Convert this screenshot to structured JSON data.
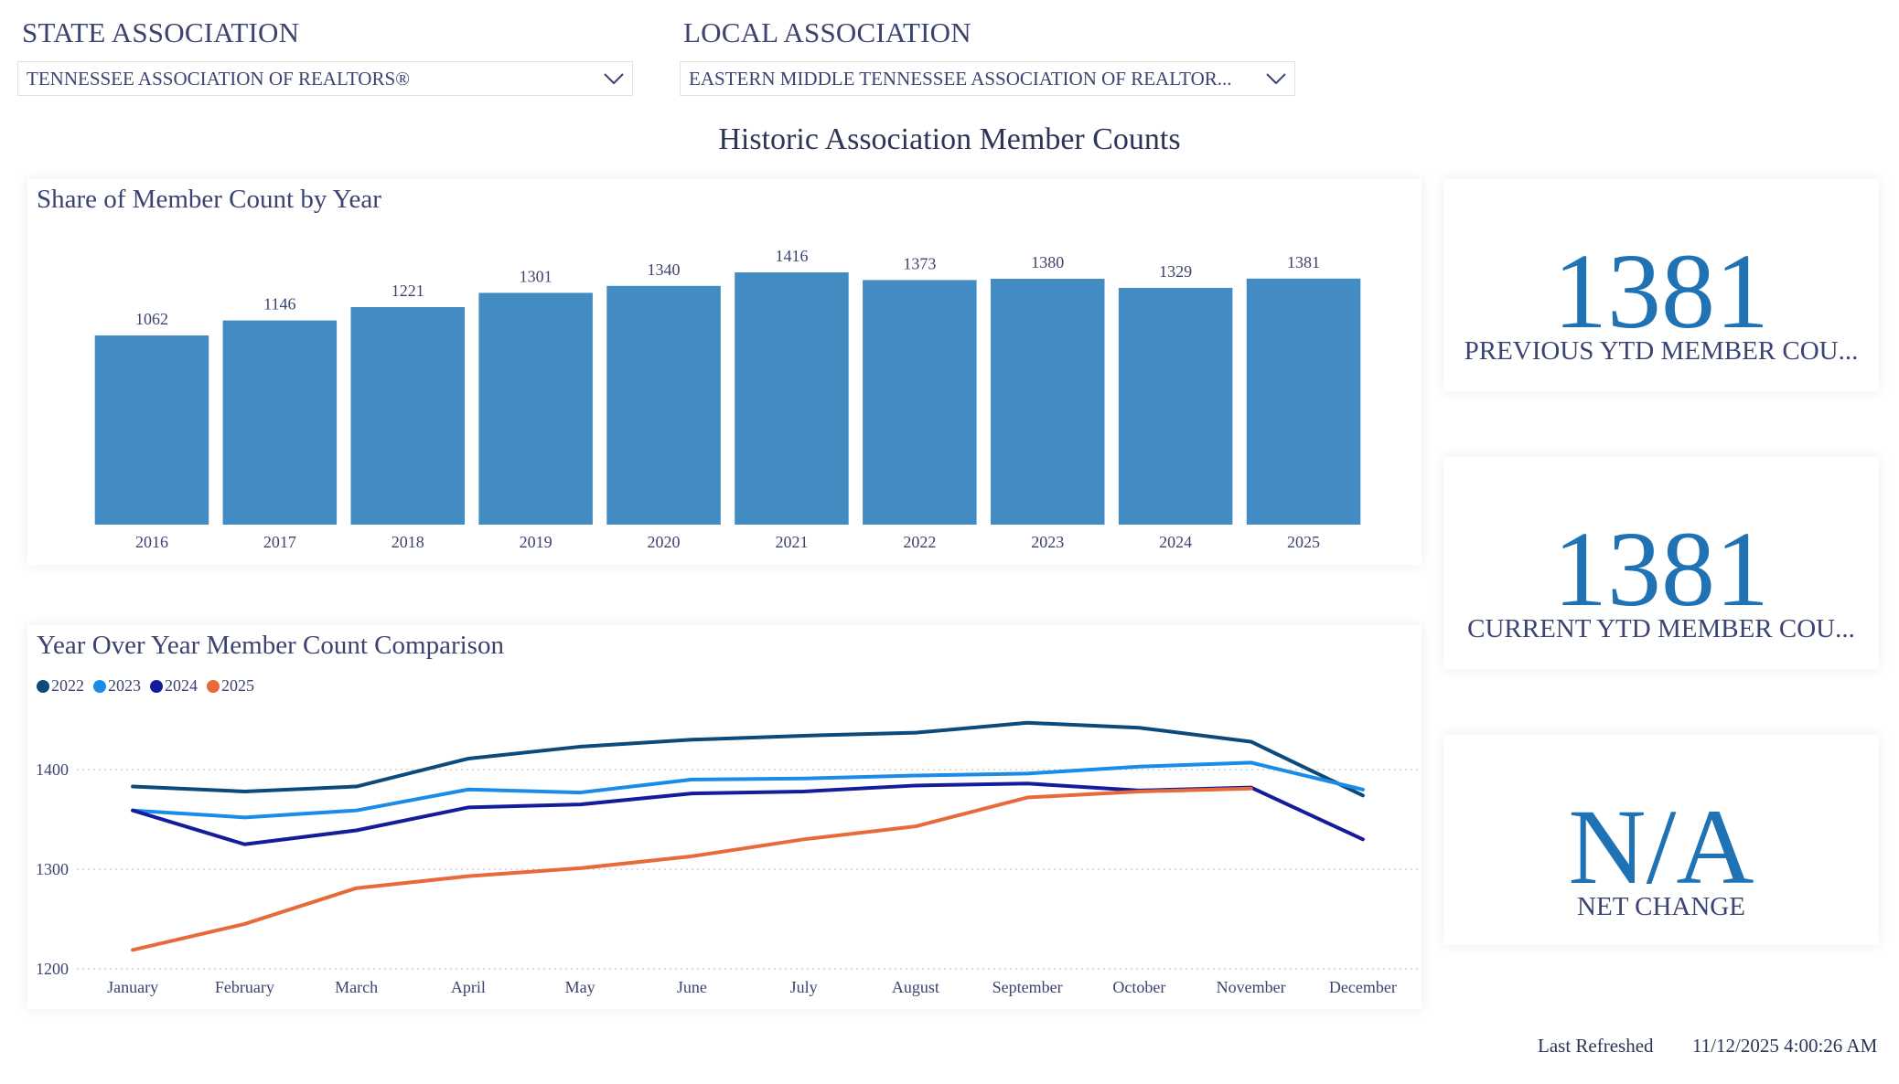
{
  "filters": {
    "state": {
      "label": "STATE ASSOCIATION",
      "value": "TENNESSEE ASSOCIATION OF REALTORS®"
    },
    "local": {
      "label": "LOCAL ASSOCIATION",
      "value": "EASTERN MIDDLE TENNESSEE ASSOCIATION OF REALTOR..."
    }
  },
  "page_title": "Historic Association Member Counts",
  "kpis": {
    "previous": {
      "value": "1381",
      "label": "PREVIOUS YTD MEMBER COU..."
    },
    "current": {
      "value": "1381",
      "label": "CURRENT YTD MEMBER COU..."
    },
    "net_change": {
      "value": "N/A",
      "label": "NET CHANGE"
    }
  },
  "footer": {
    "last_refreshed_label": "Last Refreshed",
    "last_refreshed_value": "11/12/2025 4:00:26 AM"
  },
  "colors": {
    "bar": "#428bc3",
    "kpi_value": "#1f72b4",
    "text": "#3b4370",
    "grid": "#d0d0d0"
  },
  "chart_data": [
    {
      "type": "bar",
      "title": "Share of Member Count by Year",
      "categories": [
        "2016",
        "2017",
        "2018",
        "2019",
        "2020",
        "2021",
        "2022",
        "2023",
        "2024",
        "2025"
      ],
      "values": [
        1062,
        1146,
        1221,
        1301,
        1340,
        1416,
        1373,
        1380,
        1329,
        1381
      ],
      "data_labels": [
        "1062",
        "1146",
        "1221",
        "1301",
        "1340",
        "1416",
        "1373",
        "1380",
        "1329",
        "1381"
      ],
      "ylim": [
        0,
        1416
      ],
      "grid": false,
      "color": "#428bc3"
    },
    {
      "type": "line",
      "title": "Year Over Year Member Count Comparison",
      "categories": [
        "January",
        "February",
        "March",
        "April",
        "May",
        "June",
        "July",
        "August",
        "September",
        "October",
        "November",
        "December"
      ],
      "yticks": [
        "1200",
        "1300",
        "1400"
      ],
      "ylim": [
        1200,
        1400
      ],
      "grid": true,
      "legend_position": "top-left",
      "series": [
        {
          "name": "2022",
          "color": "#0d4a7c",
          "values": [
            1383,
            1378,
            1383,
            1411,
            1423,
            1430,
            1434,
            1437,
            1447,
            1442,
            1428,
            1374
          ]
        },
        {
          "name": "2023",
          "color": "#1a8ce8",
          "values": [
            1359,
            1352,
            1359,
            1380,
            1377,
            1390,
            1391,
            1394,
            1396,
            1403,
            1407,
            1380
          ]
        },
        {
          "name": "2024",
          "color": "#141c9a",
          "values": [
            1359,
            1325,
            1339,
            1362,
            1365,
            1376,
            1378,
            1384,
            1386,
            1379,
            1382,
            1330
          ]
        },
        {
          "name": "2025",
          "color": "#e8693a",
          "values": [
            1219,
            1245,
            1281,
            1293,
            1301,
            1313,
            1330,
            1343,
            1372,
            1378,
            1381,
            null
          ]
        }
      ]
    }
  ]
}
